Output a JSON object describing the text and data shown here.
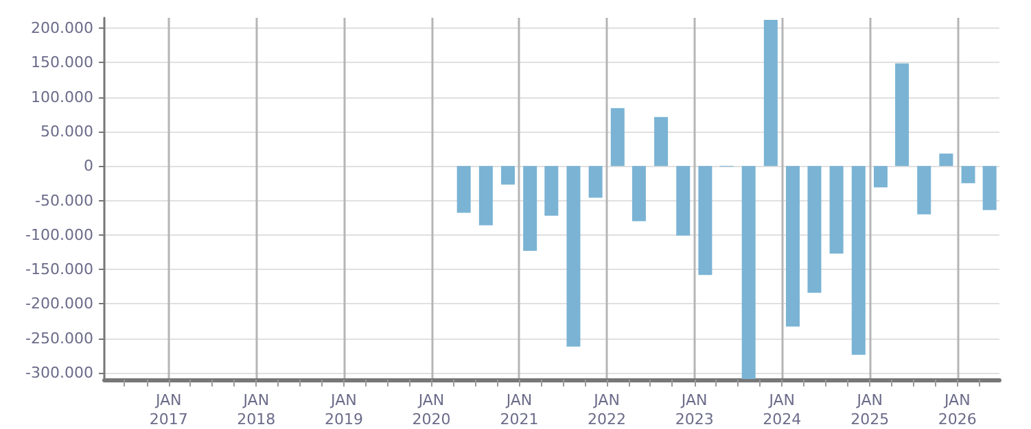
{
  "chart_data": {
    "type": "bar",
    "x": [
      "2020-05-15",
      "2020-08-15",
      "2020-11-15",
      "2021-02-15",
      "2021-05-15",
      "2021-08-15",
      "2021-11-15",
      "2022-02-15",
      "2022-05-15",
      "2022-08-15",
      "2022-11-15",
      "2023-02-15",
      "2023-05-15",
      "2023-08-15",
      "2023-11-15",
      "2024-02-15",
      "2024-05-15",
      "2024-08-15",
      "2024-11-15",
      "2025-02-15",
      "2025-05-15",
      "2025-08-15",
      "2025-11-15",
      "2026-02-15",
      "2026-05-15"
    ],
    "values": [
      -68000,
      -86000,
      -27000,
      -123000,
      -72000,
      -262000,
      -46000,
      84000,
      -80000,
      71000,
      -101000,
      -158000,
      -1000,
      -309000,
      212000,
      -233000,
      -184000,
      -127000,
      -274000,
      -31000,
      149000,
      -70000,
      18000,
      -25000,
      -64000
    ],
    "color": "#7ab3d4",
    "xlim": [
      "2016-04-08",
      "2026-06-25"
    ],
    "xticks": [
      {
        "value": "2016-07-01",
        "label": null
      },
      {
        "value": "2016-10-01",
        "label": null
      },
      {
        "value": "2017-01-01",
        "label": "JAN 2017"
      },
      {
        "value": "2017-04-01",
        "label": null
      },
      {
        "value": "2017-07-01",
        "label": null
      },
      {
        "value": "2017-10-01",
        "label": null
      },
      {
        "value": "2018-01-01",
        "label": "JAN 2018"
      },
      {
        "value": "2018-04-01",
        "label": null
      },
      {
        "value": "2018-07-01",
        "label": null
      },
      {
        "value": "2018-10-01",
        "label": null
      },
      {
        "value": "2019-01-01",
        "label": "JAN 2019"
      },
      {
        "value": "2019-04-01",
        "label": null
      },
      {
        "value": "2019-07-01",
        "label": null
      },
      {
        "value": "2019-10-01",
        "label": null
      },
      {
        "value": "2020-01-01",
        "label": "JAN 2020"
      },
      {
        "value": "2020-04-01",
        "label": null
      },
      {
        "value": "2020-07-01",
        "label": null
      },
      {
        "value": "2020-10-01",
        "label": null
      },
      {
        "value": "2021-01-01",
        "label": "JAN 2021"
      },
      {
        "value": "2021-04-01",
        "label": null
      },
      {
        "value": "2021-07-01",
        "label": null
      },
      {
        "value": "2021-10-01",
        "label": null
      },
      {
        "value": "2022-01-01",
        "label": "JAN 2022"
      },
      {
        "value": "2022-04-01",
        "label": null
      },
      {
        "value": "2022-07-01",
        "label": null
      },
      {
        "value": "2022-10-01",
        "label": null
      },
      {
        "value": "2023-01-01",
        "label": "JAN 2023"
      },
      {
        "value": "2023-04-01",
        "label": null
      },
      {
        "value": "2023-07-01",
        "label": null
      },
      {
        "value": "2023-10-01",
        "label": null
      },
      {
        "value": "2024-01-01",
        "label": "JAN 2024"
      },
      {
        "value": "2024-04-01",
        "label": null
      },
      {
        "value": "2024-07-01",
        "label": null
      },
      {
        "value": "2024-10-01",
        "label": null
      },
      {
        "value": "2025-01-01",
        "label": "JAN 2025"
      },
      {
        "value": "2025-04-01",
        "label": null
      },
      {
        "value": "2025-07-01",
        "label": null
      },
      {
        "value": "2025-10-01",
        "label": null
      },
      {
        "value": "2026-01-01",
        "label": "JAN 2026"
      },
      {
        "value": "2026-04-01",
        "label": null
      }
    ],
    "ylim": [
      -310000,
      215000
    ],
    "yticks": [
      {
        "value": 200000,
        "label": "200.000"
      },
      {
        "value": 150000,
        "label": "150.000"
      },
      {
        "value": 100000,
        "label": "100.000"
      },
      {
        "value": 50000,
        "label": "50.000"
      },
      0,
      {
        "value": -50000,
        "label": "-50.000"
      },
      {
        "value": -100000,
        "label": "-100.000"
      },
      {
        "value": -150000,
        "label": "-150.000"
      },
      {
        "value": -200000,
        "label": "-200.000"
      },
      {
        "value": -250000,
        "label": "-250.000"
      },
      {
        "value": -300000,
        "label": "-300.000"
      }
    ],
    "grid": true
  }
}
